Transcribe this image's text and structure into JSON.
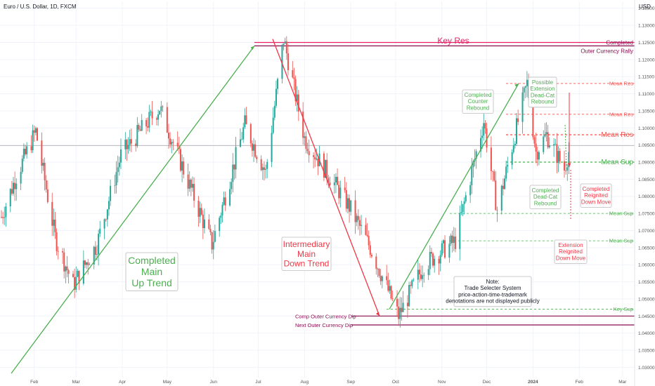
{
  "header": {
    "title": "Euro / U.S. Dollar, 1D, FXCM",
    "currency": "USD"
  },
  "colors": {
    "up": "#26a69a",
    "down": "#ef5350",
    "green": "#4caf50",
    "red": "#e91e63",
    "dark": "#880e4f",
    "grid": "#f0f3fa"
  },
  "chart_data": {
    "type": "candlestick",
    "title": "Euro / U.S. Dollar, 1D, FXCM",
    "x_ticks": [
      "Feb",
      "Mar",
      "Apr",
      "May",
      "Jun",
      "Jul",
      "Aug",
      "Sep",
      "Oct",
      "Nov",
      "Dec",
      "2024",
      "Feb",
      "Mar"
    ],
    "y_ticks": [
      1.135,
      1.13,
      1.125,
      1.12,
      1.115,
      1.11,
      1.105,
      1.1,
      1.095,
      1.09,
      1.085,
      1.08,
      1.075,
      1.07,
      1.065,
      1.06,
      1.055,
      1.05,
      1.045,
      1.04,
      1.035,
      1.03
    ],
    "ylim": [
      1.027,
      1.137
    ],
    "current_price": 1.09485,
    "price_path": [
      [
        "2023-01-10",
        1.074
      ],
      [
        "2023-01-20",
        1.086
      ],
      [
        "2023-02-02",
        1.099
      ],
      [
        "2023-02-15",
        1.068
      ],
      [
        "2023-02-27",
        1.054
      ],
      [
        "2023-03-15",
        1.066
      ],
      [
        "2023-03-31",
        1.092
      ],
      [
        "2023-04-26",
        1.106
      ],
      [
        "2023-05-31",
        1.066
      ],
      [
        "2023-06-22",
        1.101
      ],
      [
        "2023-07-06",
        1.087
      ],
      [
        "2023-07-18",
        1.126
      ],
      [
        "2023-08-01",
        1.097
      ],
      [
        "2023-08-31",
        1.077
      ],
      [
        "2023-09-14",
        1.065
      ],
      [
        "2023-10-03",
        1.045
      ],
      [
        "2023-10-20",
        1.06
      ],
      [
        "2023-11-10",
        1.067
      ],
      [
        "2023-11-29",
        1.102
      ],
      [
        "2023-12-08",
        1.076
      ],
      [
        "2023-12-28",
        1.113
      ],
      [
        "2024-01-03",
        1.093
      ],
      [
        "2024-01-10",
        1.098
      ],
      [
        "2024-01-22",
        1.088
      ],
      [
        "2024-01-26",
        1.0948
      ]
    ],
    "levels": [
      {
        "value": 1.125,
        "label": "1.12500",
        "style": "red-solid"
      },
      {
        "value": 1.124,
        "label": "1.12400",
        "style": "dark-solid"
      },
      {
        "value": 1.113,
        "label": "1.11300",
        "name": "Mean Res",
        "style": "red-dashed"
      },
      {
        "value": 1.104,
        "label": "1.10400",
        "name": "Mean Res",
        "style": "red-dashed"
      },
      {
        "value": 1.098,
        "label": "1.09800",
        "name": "Mean Res",
        "style": "red-dashed-bold"
      },
      {
        "value": 1.09485,
        "label": "1.09485",
        "style": "current"
      },
      {
        "value": 1.09,
        "label": "1.09000",
        "name": "Mean Sup",
        "style": "green-dashed-bold"
      },
      {
        "value": 1.075,
        "label": "1.07500",
        "name": "Mean Sup",
        "style": "green-dashed"
      },
      {
        "value": 1.067,
        "label": "1.06700",
        "name": "Mean Sup",
        "style": "green-dashed"
      },
      {
        "value": 1.047,
        "label": "1.04700",
        "name": "Key Sup",
        "style": "green-dashed"
      },
      {
        "value": 1.045,
        "label": "1.04500",
        "style": "dark-solid"
      },
      {
        "value": 1.04239,
        "label": "1.04239",
        "style": "dark-solid"
      }
    ],
    "annotations": {
      "key_res": "Key Res",
      "completed": "Completed",
      "outer_rally": "Outer Currency Rally",
      "completed_main_up_trend": [
        "Completed",
        "Main",
        "Up Trend"
      ],
      "intermediary_main_down_trend": [
        "Intermediary",
        "Main",
        "Down Trend"
      ],
      "completed_counter_rebound": [
        "Completed",
        "Counter",
        "Rebound"
      ],
      "possible_extension": [
        "Possible",
        "Extension",
        "Dead-Cat",
        "Rebound"
      ],
      "completed_dead_cat": [
        "Completed",
        "Dead-Cat",
        "Rebound"
      ],
      "completed_reignited": [
        "Completed",
        "Reignited",
        "Down Move"
      ],
      "extension_reignited": [
        "Extension",
        "Reignited",
        "Down Move"
      ],
      "comp_outer_dip": "Comp Outer Currency Dip",
      "next_outer_dip": "Next Outer Currency Dip",
      "note": [
        "Note:",
        "Trade Selecter System",
        "price-action-time-trademark",
        "denotations are not displayed publicly"
      ]
    }
  }
}
